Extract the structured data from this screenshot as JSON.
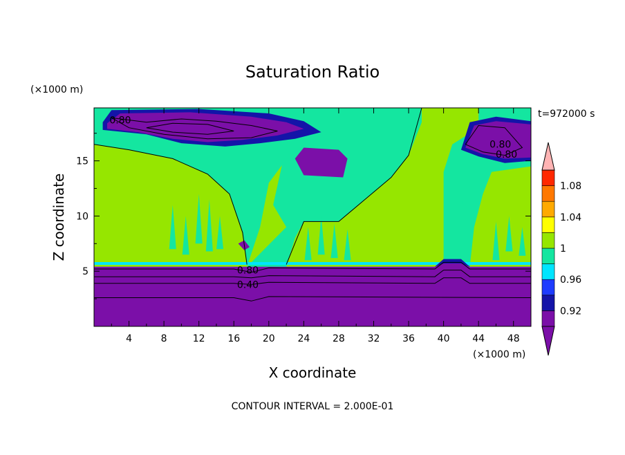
{
  "chart_data": {
    "type": "heatmap",
    "title": "Saturation Ratio",
    "xlabel": "X coordinate",
    "ylabel": "Z coordinate",
    "x_unit": "(×1000 m)",
    "y_unit": "(×1000 m)",
    "time_label": "t=972000 s",
    "footer": "CONTOUR INTERVAL = 2.000E-01",
    "xlim": [
      0,
      50
    ],
    "ylim": [
      0,
      19.8
    ],
    "x_ticks": [
      4,
      8,
      12,
      16,
      20,
      24,
      28,
      32,
      36,
      40,
      44,
      48
    ],
    "y_ticks": [
      5,
      10,
      15
    ],
    "x_tick_labels": [
      "4",
      "8",
      "12",
      "16",
      "20",
      "24",
      "28",
      "32",
      "36",
      "40",
      "44",
      "48"
    ],
    "y_tick_labels": [
      "5",
      "10",
      "15"
    ],
    "colorbar": {
      "levels": [
        0.9,
        0.92,
        0.94,
        0.96,
        0.98,
        1.0,
        1.02,
        1.04,
        1.06,
        1.08,
        1.1
      ],
      "tick_labels": [
        "0.92",
        "0.96",
        "1",
        "1.04",
        "1.08"
      ],
      "colors": [
        "#7b0fa8",
        "#1414a8",
        "#1e3cff",
        "#00e5ff",
        "#14e6a0",
        "#96e600",
        "#ffff00",
        "#ffaa00",
        "#ff7800",
        "#ff2800",
        "#ffb4b4"
      ],
      "extend": "both"
    },
    "contour_labels": [
      {
        "text": "0.80",
        "x": 3.0,
        "y": 18.7
      },
      {
        "text": "0.80",
        "x": 17.6,
        "y": 5.1
      },
      {
        "text": "0.40",
        "x": 17.6,
        "y": 3.8
      },
      {
        "text": "0.80",
        "x": 46.5,
        "y": 16.5
      },
      {
        "text": "0.80",
        "x": 47.2,
        "y": 15.6
      }
    ],
    "regions": {
      "dry_layer_top_km": 5.4,
      "saturated_band_km": [
        5.4,
        5.7
      ],
      "upper_dry_patches": [
        {
          "x": [
            1,
            23
          ],
          "z": [
            16,
            19.8
          ]
        },
        {
          "x": [
            23,
            29
          ],
          "z": [
            13,
            16
          ]
        },
        {
          "x": [
            42,
            50
          ],
          "z": [
            14.5,
            19
          ]
        }
      ]
    }
  }
}
